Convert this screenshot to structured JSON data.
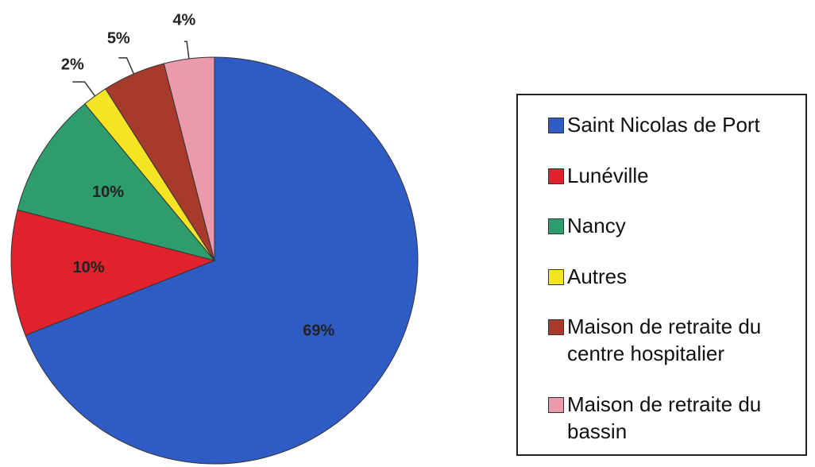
{
  "chart_data": {
    "type": "pie",
    "categories": [
      "Saint Nicolas de Port",
      "Lunéville",
      "Nancy",
      "Autres",
      "Maison de retraite du centre hospitalier",
      "Maison de retraite du bassin"
    ],
    "values": [
      69,
      10,
      10,
      2,
      5,
      4
    ],
    "value_labels": [
      "69%",
      "10%",
      "10%",
      "2%",
      "5%",
      "4%"
    ],
    "colors": [
      "#2f5cc4",
      "#e0222c",
      "#2e9c6c",
      "#f4e424",
      "#a83a2c",
      "#ea9aaa"
    ],
    "legend": "right"
  }
}
